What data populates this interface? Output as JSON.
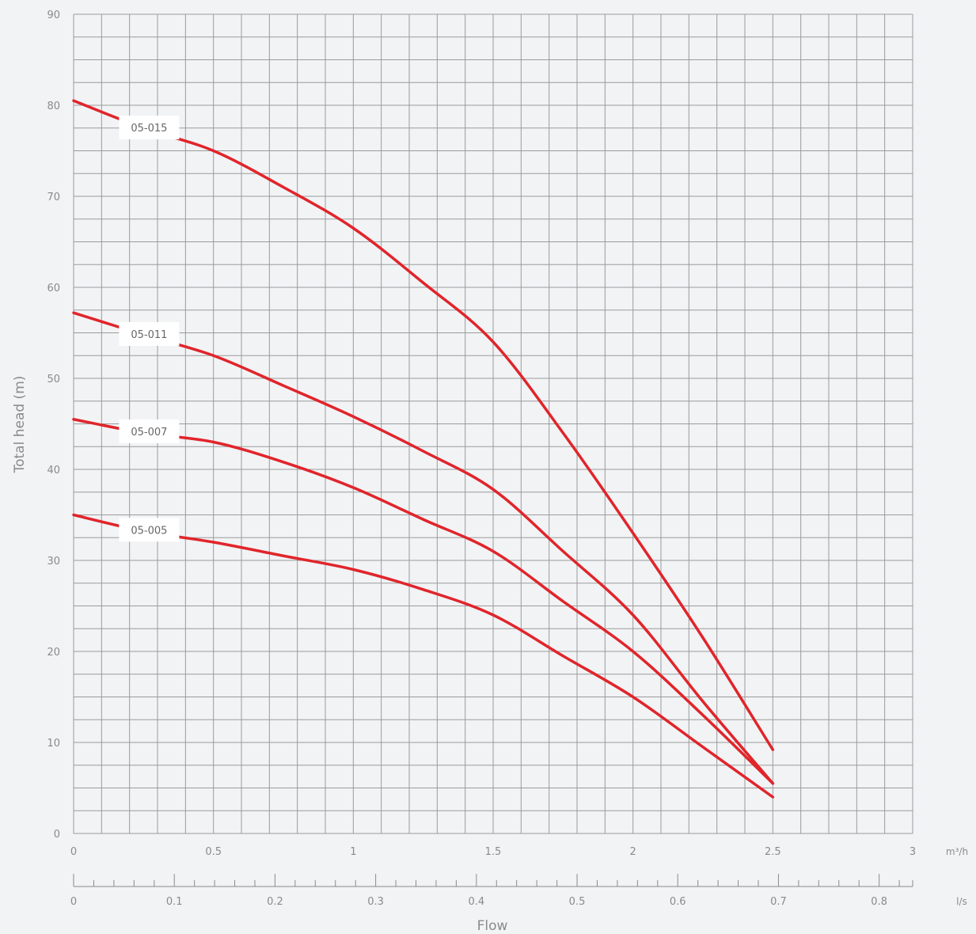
{
  "chart_data": {
    "type": "line",
    "ylabel": "Total head (m)",
    "xlabel": "Flow",
    "ylim": [
      0,
      90
    ],
    "xlim": [
      0,
      3
    ],
    "x_unit": "m³/h",
    "y_ticks": [
      0,
      10,
      20,
      30,
      40,
      50,
      60,
      70,
      80,
      90
    ],
    "x_ticks": [
      {
        "value": 0,
        "label": "0"
      },
      {
        "value": 0.5,
        "label": "0.5"
      },
      {
        "value": 1,
        "label": "1"
      },
      {
        "value": 1.5,
        "label": "1.5"
      },
      {
        "value": 2,
        "label": "2"
      },
      {
        "value": 2.5,
        "label": "2.5"
      },
      {
        "value": 3,
        "label": "3"
      }
    ],
    "secondary_x": {
      "unit": "l/s",
      "lim": [
        0,
        0.8333
      ],
      "ticks": [
        {
          "value": 0,
          "label": "0"
        },
        {
          "value": 0.1,
          "label": "0.1"
        },
        {
          "value": 0.2,
          "label": "0.2"
        },
        {
          "value": 0.3,
          "label": "0.3"
        },
        {
          "value": 0.4,
          "label": "0.4"
        },
        {
          "value": 0.5,
          "label": "0.5"
        },
        {
          "value": 0.6,
          "label": "0.6"
        },
        {
          "value": 0.7,
          "label": "0.7"
        },
        {
          "value": 0.8,
          "label": "0.8"
        }
      ]
    },
    "grid": true,
    "line_color": "#e0252b",
    "series": [
      {
        "name": "05-015",
        "x": [
          0,
          0.25,
          0.5,
          0.75,
          1.0,
          1.25,
          1.5,
          1.75,
          2.0,
          2.25,
          2.5
        ],
        "y": [
          80.5,
          77.5,
          75,
          71,
          66.5,
          60.5,
          54,
          44,
          33,
          21.5,
          9.2
        ]
      },
      {
        "name": "05-011",
        "x": [
          0,
          0.25,
          0.5,
          0.75,
          1.0,
          1.25,
          1.5,
          1.75,
          2.0,
          2.25,
          2.5
        ],
        "y": [
          57.2,
          54.8,
          52.5,
          49.2,
          45.8,
          42,
          37.8,
          31,
          24,
          14.5,
          5.5
        ]
      },
      {
        "name": "05-007",
        "x": [
          0,
          0.25,
          0.5,
          0.75,
          1.0,
          1.25,
          1.5,
          1.75,
          2.0,
          2.25,
          2.5
        ],
        "y": [
          45.5,
          44,
          43,
          40.8,
          38,
          34.5,
          31,
          25.5,
          20,
          13,
          5.5
        ]
      },
      {
        "name": "05-005",
        "x": [
          0,
          0.25,
          0.5,
          0.75,
          1.0,
          1.25,
          1.5,
          1.75,
          2.0,
          2.25,
          2.5
        ],
        "y": [
          35,
          33.2,
          32,
          30.5,
          29,
          26.8,
          24,
          19.5,
          15,
          9.5,
          4
        ]
      }
    ]
  }
}
